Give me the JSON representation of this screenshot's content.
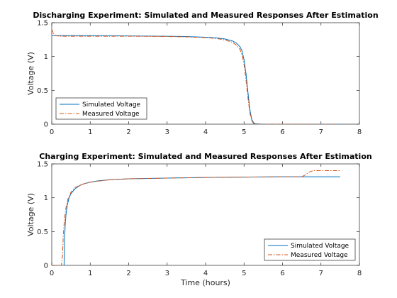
{
  "colors": {
    "simulated": "#0072BD",
    "measured": "#D95319",
    "axes": "#262626"
  },
  "chart_data": [
    {
      "type": "line",
      "title": "Discharging Experiment: Simulated and Measured Responses After Estimation",
      "xlabel": "",
      "ylabel": "Voltage (V)",
      "xlim": [
        0,
        8
      ],
      "ylim": [
        0,
        1.5
      ],
      "xticks": [
        "0",
        "1",
        "2",
        "3",
        "4",
        "5",
        "6",
        "7",
        "8"
      ],
      "yticks": [
        "0",
        "0.5",
        "1",
        "1.5"
      ],
      "legend": {
        "position": "bottom-left",
        "entries": [
          "Simulated Voltage",
          "Measured Voltage"
        ]
      },
      "series": [
        {
          "name": "Simulated Voltage",
          "style": "solid",
          "x": [
            0,
            0.5,
            1,
            2,
            3,
            3.5,
            4,
            4.3,
            4.5,
            4.7,
            4.8,
            4.9,
            4.95,
            5.0,
            5.05,
            5.1,
            5.15,
            5.2,
            5.25,
            5.3,
            5.5,
            6,
            7,
            7.5
          ],
          "y": [
            1.31,
            1.31,
            1.31,
            1.305,
            1.3,
            1.295,
            1.285,
            1.275,
            1.26,
            1.23,
            1.2,
            1.14,
            1.08,
            0.95,
            0.75,
            0.48,
            0.22,
            0.07,
            0.02,
            0.005,
            0,
            0,
            0,
            0
          ]
        },
        {
          "name": "Measured Voltage",
          "style": "dashdot",
          "x": [
            0,
            0.02,
            0.05,
            0.1,
            0.2,
            0.5,
            1,
            2,
            3,
            3.5,
            4,
            4.3,
            4.5,
            4.7,
            4.8,
            4.9,
            4.95,
            5.0,
            5.05,
            5.1,
            5.15,
            5.2,
            5.25,
            5.3,
            5.5,
            6,
            7,
            7.5
          ],
          "y": [
            1.33,
            1.38,
            1.34,
            1.31,
            1.3,
            1.3,
            1.3,
            1.3,
            1.295,
            1.29,
            1.28,
            1.265,
            1.245,
            1.21,
            1.17,
            1.1,
            1.02,
            0.88,
            0.66,
            0.4,
            0.17,
            0.05,
            0.01,
            0,
            0,
            0,
            0,
            0
          ]
        }
      ]
    },
    {
      "type": "line",
      "title": "Charging Experiment: Simulated and Measured Responses After Estimation",
      "xlabel": "Time (hours)",
      "ylabel": "Voltage (V)",
      "xlim": [
        0,
        8
      ],
      "ylim": [
        0,
        1.5
      ],
      "xticks": [
        "0",
        "1",
        "2",
        "3",
        "4",
        "5",
        "6",
        "7",
        "8"
      ],
      "yticks": [
        "0",
        "0.5",
        "1",
        "1.5"
      ],
      "legend": {
        "position": "bottom-right",
        "entries": [
          "Simulated Voltage",
          "Measured Voltage"
        ]
      },
      "series": [
        {
          "name": "Simulated Voltage",
          "style": "solid",
          "x": [
            0.32,
            0.33,
            0.35,
            0.37,
            0.4,
            0.45,
            0.5,
            0.6,
            0.7,
            0.8,
            1.0,
            1.2,
            1.5,
            2,
            3,
            4,
            5,
            6,
            7,
            7.5
          ],
          "y": [
            0,
            0.35,
            0.6,
            0.75,
            0.88,
            1.0,
            1.06,
            1.13,
            1.17,
            1.2,
            1.23,
            1.25,
            1.265,
            1.28,
            1.29,
            1.3,
            1.305,
            1.31,
            1.31,
            1.31
          ]
        },
        {
          "name": "Measured Voltage",
          "style": "dashdot",
          "x": [
            0,
            0.25,
            0.28,
            0.3,
            0.33,
            0.37,
            0.42,
            0.5,
            0.6,
            0.8,
            1.0,
            1.5,
            2,
            3,
            4,
            5,
            6,
            6.5,
            6.6,
            6.7,
            6.8,
            7,
            7.5
          ],
          "y": [
            0,
            0,
            0.15,
            0.45,
            0.68,
            0.85,
            0.98,
            1.08,
            1.15,
            1.2,
            1.23,
            1.265,
            1.28,
            1.29,
            1.3,
            1.305,
            1.31,
            1.31,
            1.34,
            1.38,
            1.4,
            1.4,
            1.4
          ]
        }
      ]
    }
  ]
}
